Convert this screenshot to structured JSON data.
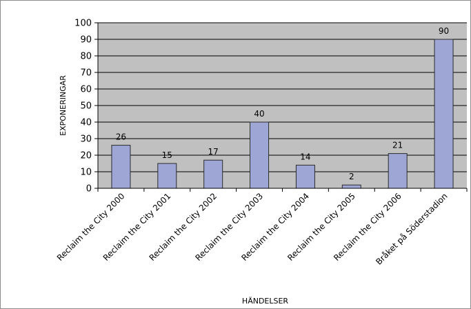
{
  "chart_data": {
    "type": "bar",
    "categories": [
      "Reclaim the City 2000",
      "Reclaim the City 2001",
      "Reclaim the City 2002",
      "Reclaim the City 2003",
      "Reclaim the City 2004",
      "Reclaim the City 2005",
      "Reclaim the City 2006",
      "Bråket på Söderstadion"
    ],
    "values": [
      26,
      15,
      17,
      40,
      14,
      2,
      21,
      90
    ],
    "data_labels": [
      "26",
      "15",
      "17",
      "40",
      "14",
      "2",
      "21",
      "90"
    ],
    "title": "",
    "xlabel": "HÄNDELSER",
    "ylabel": "EXPONERINGAR",
    "ylim": [
      0,
      100
    ],
    "yticks": [
      0,
      10,
      20,
      30,
      40,
      50,
      60,
      70,
      80,
      90,
      100
    ],
    "ytick_labels": [
      "0",
      "10",
      "20",
      "30",
      "40",
      "50",
      "60",
      "70",
      "80",
      "90",
      "100"
    ],
    "grid": true,
    "legend": "none",
    "colors": {
      "plot_background": "#c0c0c0",
      "bar_fill": "#9ea6d6",
      "bar_stroke": "#2a2a2a",
      "gridline": "#000000",
      "frame": "#8c8c8c"
    }
  }
}
